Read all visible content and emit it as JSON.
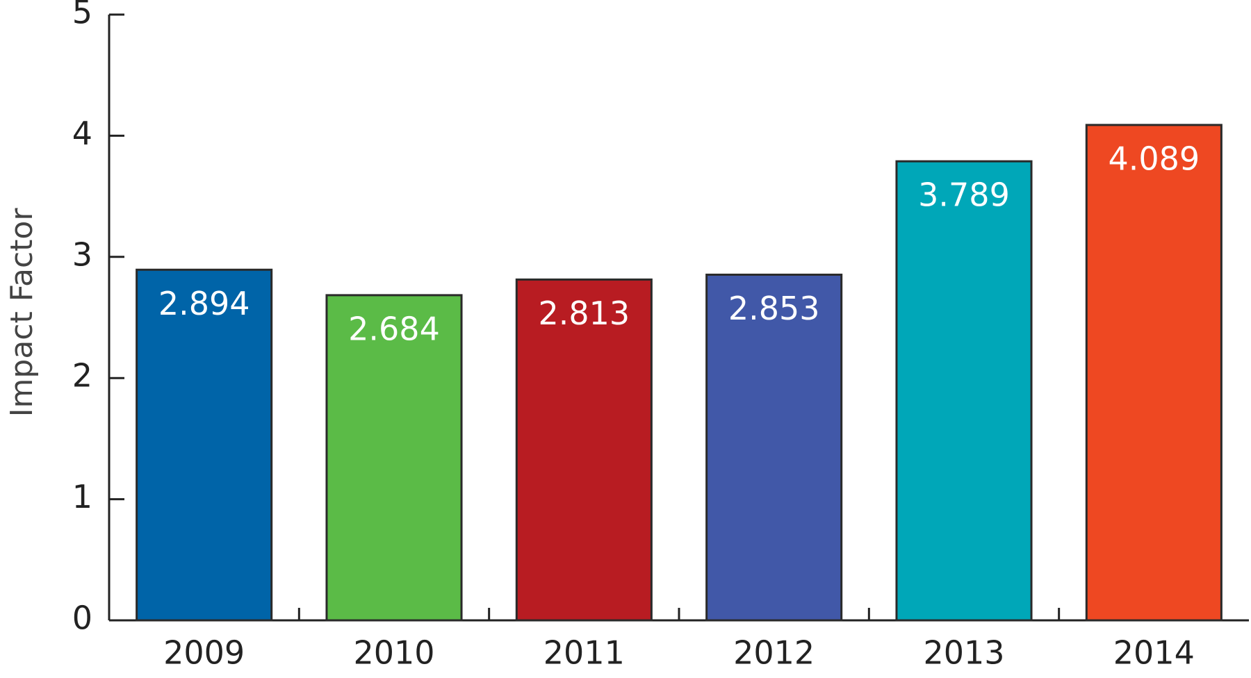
{
  "chart_data": {
    "type": "bar",
    "ylabel": "Impact Factor",
    "categories": [
      "2009",
      "2010",
      "2011",
      "2012",
      "2013",
      "2014"
    ],
    "values": [
      2.894,
      2.684,
      2.813,
      2.853,
      3.789,
      4.089
    ],
    "colors": [
      "#0064a8",
      "#5bbb47",
      "#b81c22",
      "#4158a8",
      "#00a7b8",
      "#ee4822"
    ],
    "ylim": [
      0,
      5
    ],
    "yticks": [
      0,
      1,
      2,
      3,
      4,
      5
    ]
  }
}
